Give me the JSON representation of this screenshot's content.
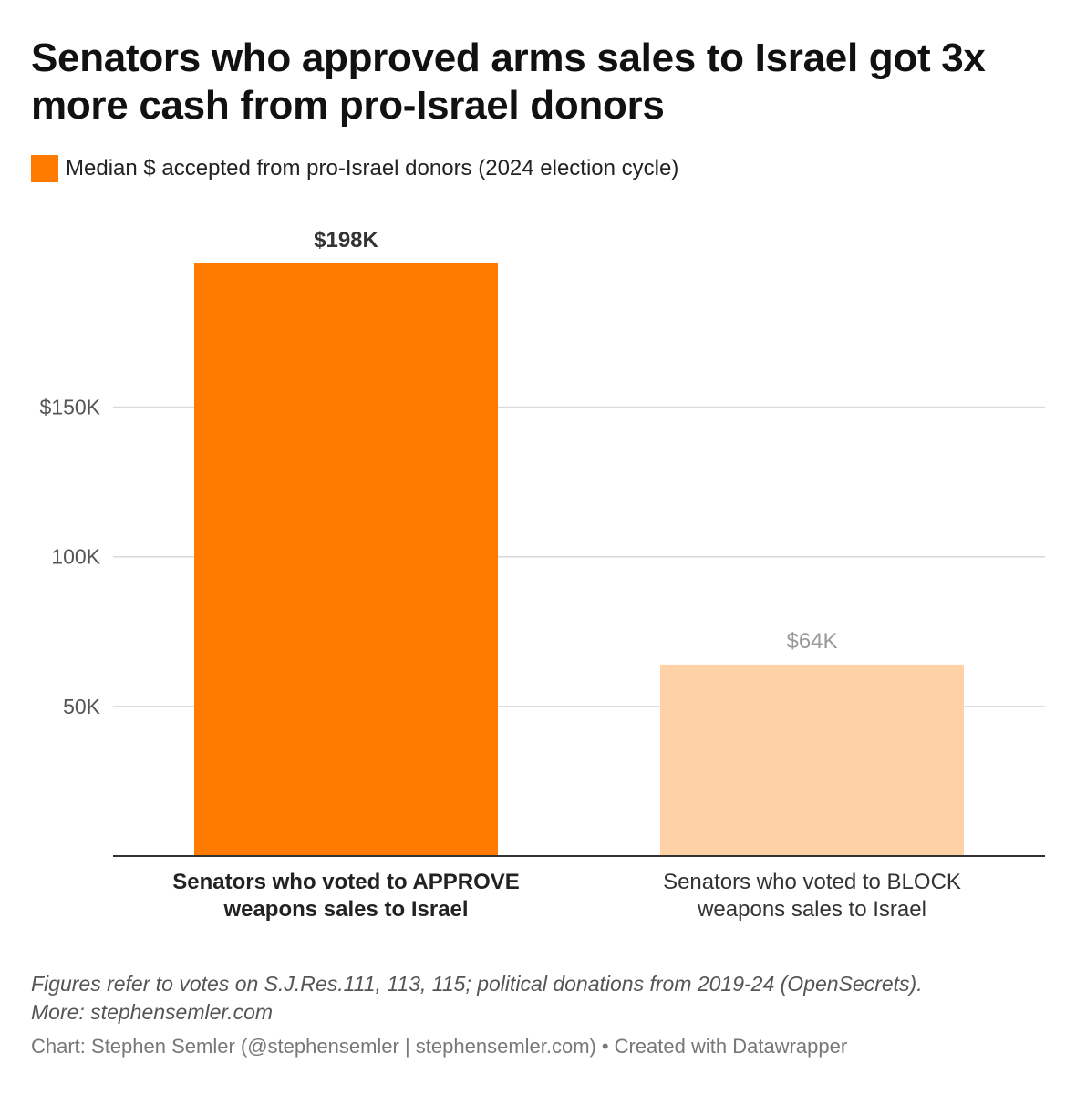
{
  "title": "Senators who approved arms sales to Israel got 3x more cash from pro-Israel donors",
  "footer": {
    "notes_line1": "Figures refer to votes on S.J.Res.111, 113, 115; political donations from 2019-24 (OpenSecrets).",
    "notes_line2": "More: stephensemler.com",
    "credit": "Chart: Stephen Semler (@stephensemler | stephensemler.com)",
    "separator": "•",
    "created_with": "Created with Datawrapper"
  },
  "chart_data": {
    "type": "bar",
    "title": "Senators who approved arms sales to Israel got 3x more cash from pro-Israel donors",
    "xlabel": "",
    "ylabel": "",
    "ylim": [
      0,
      200000
    ],
    "grid": true,
    "legend_position": "top-left",
    "yticks": [
      {
        "value": 50000,
        "label": "50K"
      },
      {
        "value": 100000,
        "label": "100K"
      },
      {
        "value": 150000,
        "label": "$150K"
      }
    ],
    "categories": [
      "Senators who voted to APPROVE weapons sales to Israel",
      "Senators who voted to BLOCK weapons sales to Israel"
    ],
    "category_lines": [
      [
        "Senators who voted to APPROVE",
        "weapons sales to Israel"
      ],
      [
        "Senators who voted to BLOCK",
        "weapons sales to Israel"
      ]
    ],
    "series": [
      {
        "name": "Median $ accepted from pro-Israel donors (2024 election cycle)",
        "values": [
          198000,
          64000
        ],
        "labels": [
          "$198K",
          "$64K"
        ],
        "colors": [
          "#ff7b00",
          "#ffd1a6"
        ],
        "label_colors": [
          "#333333",
          "#999999"
        ],
        "emphasis": [
          true,
          false
        ]
      }
    ],
    "legend_color": "#ff7b00",
    "colors": {
      "grid": "#d9d9d9",
      "axis": "#333333",
      "tick_label": "#555555"
    }
  }
}
